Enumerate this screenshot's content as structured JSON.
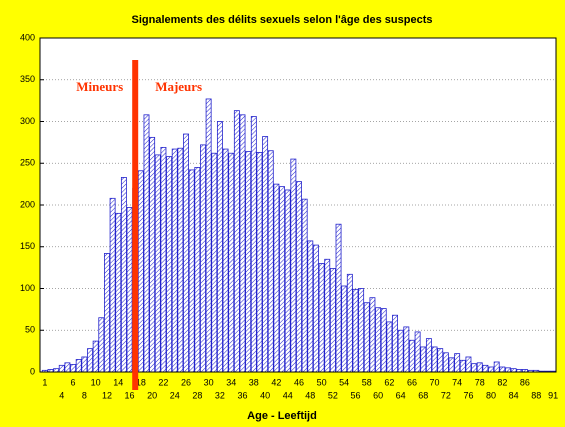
{
  "chart_data": {
    "type": "bar",
    "title": "Signalements des délits sexuels selon l'âge des suspects",
    "x_label": "Age - Leeftijd",
    "annotations": [
      "Mineurs",
      "Majeurs"
    ],
    "categories": [
      "1",
      null,
      null,
      "4",
      null,
      "6",
      null,
      "8",
      null,
      "10",
      null,
      "12",
      null,
      "14",
      null,
      "16",
      null,
      "18",
      null,
      "20",
      null,
      "22",
      null,
      "24",
      null,
      "26",
      null,
      "28",
      null,
      "30",
      null,
      "32",
      null,
      "34",
      null,
      "36",
      null,
      "38",
      null,
      "40",
      null,
      "42",
      null,
      "44",
      null,
      "46",
      null,
      "48",
      null,
      "50",
      null,
      "52",
      null,
      "54",
      null,
      "56",
      null,
      "58",
      null,
      "60",
      null,
      "62",
      null,
      "64",
      null,
      "66",
      null,
      "68",
      null,
      "70",
      null,
      "72",
      null,
      "74",
      null,
      "76",
      null,
      "78",
      null,
      "80",
      null,
      "82",
      null,
      "84",
      null,
      "86",
      null,
      "88",
      null,
      null,
      "91"
    ],
    "values": [
      2,
      3,
      4,
      8,
      11,
      9,
      15,
      18,
      28,
      37,
      65,
      142,
      208,
      190,
      233,
      197,
      220,
      241,
      308,
      281,
      260,
      269,
      258,
      267,
      268,
      285,
      242,
      245,
      272,
      327,
      262,
      300,
      267,
      262,
      313,
      308,
      264,
      306,
      263,
      282,
      265,
      225,
      222,
      218,
      255,
      228,
      207,
      157,
      152,
      130,
      135,
      124,
      177,
      103,
      117,
      99,
      100,
      83,
      89,
      77,
      76,
      60,
      68,
      50,
      54,
      38,
      48,
      30,
      40,
      30,
      28,
      23,
      17,
      22,
      14,
      18,
      10,
      11,
      8,
      6,
      12,
      6,
      5,
      4,
      3,
      3,
      2,
      2,
      1,
      1,
      1
    ],
    "color": "#2222cc",
    "ylim": [
      0,
      400
    ],
    "yticks": [
      0,
      50,
      100,
      150,
      200,
      250,
      300,
      350,
      400
    ],
    "grid": true
  }
}
